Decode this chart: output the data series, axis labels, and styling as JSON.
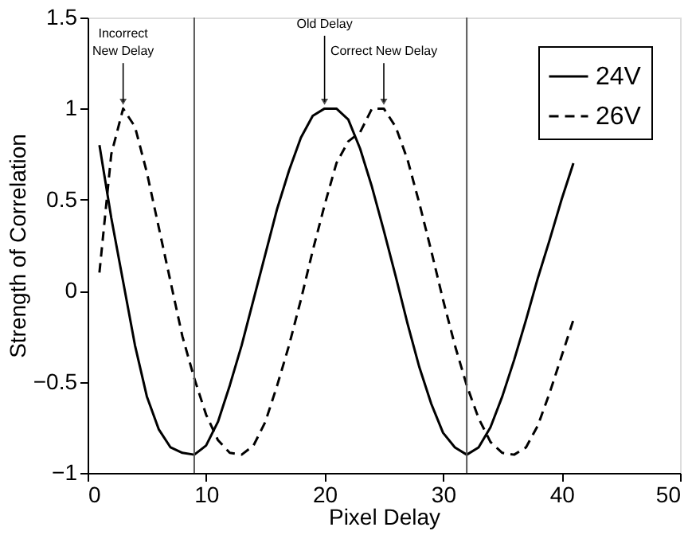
{
  "chart_data": {
    "type": "line",
    "xlabel": "Pixel Delay",
    "ylabel": "Strength of Correlation",
    "x": [
      1,
      2,
      3,
      4,
      5,
      6,
      7,
      8,
      9,
      10,
      11,
      12,
      13,
      14,
      15,
      16,
      17,
      18,
      19,
      20,
      21,
      22,
      23,
      24,
      25,
      26,
      27,
      28,
      29,
      30,
      31,
      32,
      33,
      34,
      35,
      36,
      37,
      38,
      39,
      40,
      41
    ],
    "series": [
      {
        "name": "24V",
        "color": "#000000",
        "line_style": "solid",
        "values": [
          0.8,
          0.4,
          0.05,
          -0.3,
          -0.58,
          -0.76,
          -0.86,
          -0.89,
          -0.9,
          -0.85,
          -0.72,
          -0.52,
          -0.3,
          -0.05,
          0.2,
          0.45,
          0.66,
          0.84,
          0.96,
          1.0,
          1.0,
          0.94,
          0.78,
          0.57,
          0.33,
          0.08,
          -0.18,
          -0.42,
          -0.62,
          -0.78,
          -0.86,
          -0.9,
          -0.86,
          -0.75,
          -0.58,
          -0.38,
          -0.16,
          0.07,
          0.28,
          0.5,
          0.7
        ]
      },
      {
        "name": "26V",
        "color": "#000000",
        "line_style": "dashed",
        "values": [
          0.1,
          0.75,
          1.0,
          0.9,
          0.65,
          0.35,
          0.05,
          -0.25,
          -0.48,
          -0.68,
          -0.82,
          -0.89,
          -0.9,
          -0.85,
          -0.72,
          -0.52,
          -0.3,
          -0.05,
          0.22,
          0.47,
          0.7,
          0.82,
          0.87,
          1.0,
          1.0,
          0.9,
          0.72,
          0.48,
          0.22,
          -0.05,
          -0.3,
          -0.52,
          -0.7,
          -0.83,
          -0.89,
          -0.9,
          -0.86,
          -0.74,
          -0.56,
          -0.36,
          -0.16
        ]
      }
    ],
    "xlim": [
      0,
      50
    ],
    "xticks": [
      0,
      10,
      20,
      30,
      40,
      50
    ],
    "ylim": [
      -1,
      1.5
    ],
    "yticks": [
      {
        "value": -1,
        "label": "−1"
      },
      {
        "value": -0.5,
        "label": "−0.5"
      },
      0,
      0.5,
      1,
      1.5
    ],
    "ref_lines": [
      {
        "axis": "x",
        "value": 9,
        "color": "#555555"
      },
      {
        "axis": "x",
        "value": 32,
        "color": "#555555"
      }
    ],
    "annotations": [
      {
        "text": "Incorrect\nNew Delay",
        "x": 3,
        "y": 1
      },
      {
        "text": "Old Delay",
        "x": 20,
        "y": 1
      },
      {
        "text": "Correct New Delay",
        "x": 25,
        "y": 1
      }
    ],
    "grid": false,
    "legend": "top right",
    "marker": "none"
  }
}
